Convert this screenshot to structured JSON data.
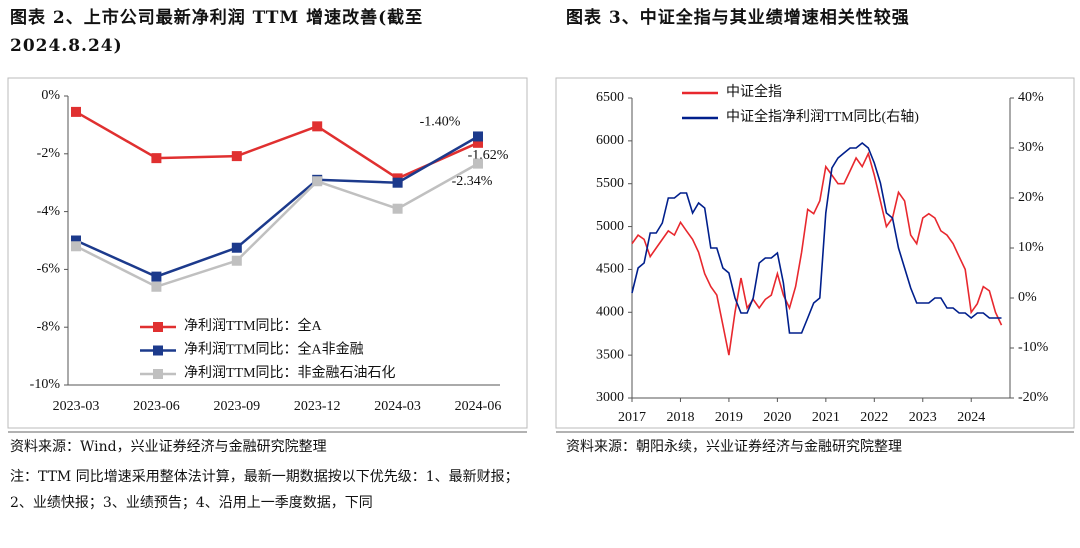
{
  "chart_data": [
    {
      "type": "line",
      "title": "图表 2、上市公司最新净利润 TTM 增速改善(截至2024.8.24)",
      "categories": [
        "2023-03",
        "2023-06",
        "2023-09",
        "2023-12",
        "2024-03",
        "2024-06"
      ],
      "series": [
        {
          "name": "净利润TTM同比：全A",
          "color": "#e03030",
          "values": [
            -0.55,
            -2.15,
            -2.08,
            -1.05,
            -2.85,
            -1.62
          ],
          "value_labels": [
            null,
            null,
            null,
            null,
            null,
            "-1.62%"
          ]
        },
        {
          "name": "净利润TTM同比：全A非金融",
          "color": "#1c3a8c",
          "values": [
            -5.0,
            -6.25,
            -5.25,
            -2.9,
            -3.0,
            -1.4
          ],
          "value_labels": [
            null,
            null,
            null,
            null,
            null,
            "-1.40%"
          ]
        },
        {
          "name": "净利润TTM同比：非金融石油石化",
          "color": "#c0c0c0",
          "values": [
            -5.2,
            -6.6,
            -5.7,
            -2.95,
            -3.9,
            -2.34
          ],
          "value_labels": [
            null,
            null,
            null,
            null,
            null,
            "-2.34%"
          ]
        }
      ],
      "ylim": [
        -10,
        0
      ],
      "yticks": [
        {
          "value": -10,
          "label": "-10%"
        },
        {
          "value": -8,
          "label": "-8%"
        },
        {
          "value": -6,
          "label": "-6%"
        },
        {
          "value": -4,
          "label": "-4%"
        },
        {
          "value": -2,
          "label": "-2%"
        },
        {
          "value": 0,
          "label": "0%"
        }
      ],
      "markers": "square",
      "legend": "lower center",
      "source": "资料来源：Wind，兴业证券经济与金融研究院整理",
      "note": "注：TTM 同比增速采用整体法计算，最新一期数据按以下优先级：1、最新财报；2、业绩快报；3、业绩预告；4、沿用上一季度数据，下同"
    },
    {
      "type": "line",
      "title": "图表 3、中证全指与其业绩增速相关性较强",
      "x": [
        2017,
        2017.125,
        2017.25,
        2017.375,
        2017.5,
        2017.625,
        2017.75,
        2017.875,
        2018,
        2018.125,
        2018.25,
        2018.375,
        2018.5,
        2018.625,
        2018.75,
        2018.875,
        2019,
        2019.125,
        2019.25,
        2019.375,
        2019.5,
        2019.625,
        2019.75,
        2019.875,
        2020,
        2020.125,
        2020.25,
        2020.375,
        2020.5,
        2020.625,
        2020.75,
        2020.875,
        2021,
        2021.125,
        2021.25,
        2021.375,
        2021.5,
        2021.625,
        2021.75,
        2021.875,
        2022,
        2022.125,
        2022.25,
        2022.375,
        2022.5,
        2022.625,
        2022.75,
        2022.875,
        2023,
        2023.125,
        2023.25,
        2023.375,
        2023.5,
        2023.625,
        2023.75,
        2023.875,
        2024,
        2024.125,
        2024.25,
        2024.375,
        2024.5,
        2024.625
      ],
      "series": [
        {
          "name": "中证全指",
          "color": "#e8282e",
          "values": [
            4800,
            4900,
            4850,
            4650,
            4750,
            4850,
            4950,
            4900,
            5050,
            4950,
            4850,
            4700,
            4450,
            4300,
            4200,
            3850,
            3500,
            4000,
            4400,
            4050,
            4150,
            4050,
            4150,
            4200,
            4450,
            4200,
            4050,
            4300,
            4700,
            5200,
            5150,
            5300,
            5700,
            5600,
            5500,
            5500,
            5650,
            5800,
            5700,
            5850,
            5600,
            5300,
            5000,
            5100,
            5400,
            5300,
            4900,
            4800,
            5100,
            5150,
            5100,
            4950,
            4900,
            4800,
            4650,
            4500,
            4000,
            4100,
            4300,
            4250,
            4000,
            3850
          ]
        },
        {
          "name": "中证全指净利润TTM同比(右轴)",
          "color": "#001f8c",
          "axis": "y2",
          "values": [
            1,
            6,
            7,
            13,
            13,
            15,
            20,
            20,
            21,
            21,
            17,
            19,
            18,
            10,
            10,
            6,
            5,
            0,
            -3,
            -3,
            0,
            7,
            8,
            8,
            9,
            3,
            -7,
            -7,
            -7,
            -4,
            -1,
            0,
            17,
            26,
            28,
            29,
            30,
            30,
            31,
            30,
            27,
            23,
            17,
            16,
            10,
            6,
            2,
            -1,
            -1,
            -1,
            0,
            0,
            -2,
            -2,
            -3,
            -3,
            -4,
            -3,
            -3,
            -4,
            -4,
            -4
          ]
        }
      ],
      "xlim": [
        2017,
        2024.8
      ],
      "xticks": [
        2017,
        2018,
        2019,
        2020,
        2021,
        2022,
        2023,
        2024
      ],
      "ylim": [
        3000,
        6500
      ],
      "yticks": [
        3000,
        3500,
        4000,
        4500,
        5000,
        5500,
        6000,
        6500
      ],
      "y2lim": [
        -20,
        40
      ],
      "y2ticks": [
        {
          "value": -20,
          "label": "-20%"
        },
        {
          "value": -10,
          "label": "-10%"
        },
        {
          "value": 0,
          "label": "0%"
        },
        {
          "value": 10,
          "label": "10%"
        },
        {
          "value": 20,
          "label": "20%"
        },
        {
          "value": 30,
          "label": "30%"
        },
        {
          "value": 40,
          "label": "40%"
        }
      ],
      "legend": "upper left",
      "source": "资料来源：朝阳永续，兴业证券经济与金融研究院整理"
    }
  ]
}
